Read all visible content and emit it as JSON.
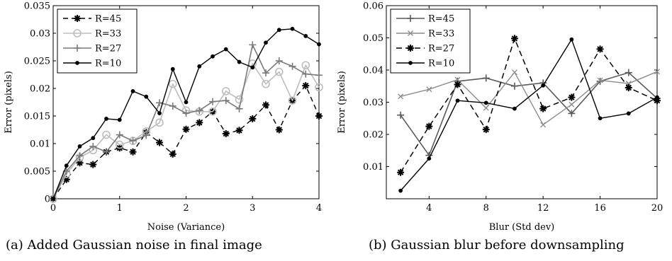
{
  "chart_data": [
    {
      "type": "line",
      "caption": "(a) Added Gaussian noise in final image",
      "xlabel": "Noise (Variance)",
      "ylabel": "Error (pixels)",
      "xlim": [
        0,
        4
      ],
      "ylim": [
        0,
        0.035
      ],
      "xticks": [
        0,
        1,
        2,
        3,
        4
      ],
      "yticks": [
        0,
        0.005,
        0.01,
        0.015,
        0.02,
        0.025,
        0.03,
        0.035
      ],
      "ytick_labels": [
        "0",
        "0.005",
        "0.01",
        "0.015",
        "0.02",
        "0.025",
        "0.03",
        "0.035"
      ],
      "legend_position": "top-left",
      "series": [
        {
          "name": "R=45",
          "color": "#000000",
          "dash": "7,5",
          "marker": "star",
          "width": 1.4,
          "x": [
            0,
            0.2,
            0.4,
            0.6,
            0.8,
            1.0,
            1.2,
            1.4,
            1.6,
            1.8,
            2.0,
            2.2,
            2.4,
            2.6,
            2.8,
            3.0,
            3.2,
            3.4,
            3.6,
            3.8,
            4.0
          ],
          "y": [
            0,
            0.0035,
            0.0065,
            0.0062,
            0.0085,
            0.0092,
            0.0085,
            0.012,
            0.0102,
            0.0081,
            0.0126,
            0.0138,
            0.0158,
            0.0118,
            0.0124,
            0.0145,
            0.017,
            0.0125,
            0.0178,
            0.0205,
            0.015
          ]
        },
        {
          "name": "R=33",
          "color": "#bdbdbd",
          "dash": "",
          "marker": "circle",
          "width": 1.6,
          "x": [
            0,
            0.2,
            0.4,
            0.6,
            0.8,
            1.0,
            1.2,
            1.4,
            1.6,
            1.8,
            2.0,
            2.2,
            2.4,
            2.6,
            2.8,
            3.0,
            3.2,
            3.4,
            3.6,
            3.8,
            4.0
          ],
          "y": [
            0,
            0.0045,
            0.0075,
            0.0088,
            0.0116,
            0.0098,
            0.0105,
            0.0122,
            0.0138,
            0.0208,
            0.016,
            0.0158,
            0.0158,
            0.0195,
            0.018,
            0.0245,
            0.0208,
            0.023,
            0.0178,
            0.0242,
            0.0202
          ]
        },
        {
          "name": "R=27",
          "color": "#7a7a7a",
          "dash": "",
          "marker": "plus",
          "width": 1.6,
          "x": [
            0,
            0.2,
            0.4,
            0.6,
            0.8,
            1.0,
            1.2,
            1.4,
            1.6,
            1.8,
            2.0,
            2.2,
            2.4,
            2.6,
            2.8,
            3.0,
            3.2,
            3.4,
            3.6,
            3.8,
            4.0
          ],
          "y": [
            0,
            0.005,
            0.0078,
            0.0095,
            0.0085,
            0.0116,
            0.0105,
            0.0115,
            0.0174,
            0.0168,
            0.0155,
            0.016,
            0.0176,
            0.0178,
            0.0163,
            0.0279,
            0.0228,
            0.025,
            0.024,
            0.0226,
            0.0224
          ]
        },
        {
          "name": "R=10",
          "color": "#000000",
          "dash": "",
          "marker": "dot",
          "width": 1.4,
          "x": [
            0,
            0.2,
            0.4,
            0.6,
            0.8,
            1.0,
            1.2,
            1.4,
            1.6,
            1.8,
            2.0,
            2.2,
            2.4,
            2.6,
            2.8,
            3.0,
            3.2,
            3.4,
            3.6,
            3.8,
            4.0
          ],
          "y": [
            0,
            0.006,
            0.0095,
            0.011,
            0.0145,
            0.0143,
            0.0195,
            0.0185,
            0.0155,
            0.0235,
            0.0175,
            0.024,
            0.0258,
            0.0271,
            0.0248,
            0.0238,
            0.0283,
            0.0306,
            0.0308,
            0.0295,
            0.028
          ]
        }
      ]
    },
    {
      "type": "line",
      "caption": "(b) Gaussian blur before downsampling",
      "xlabel": "Blur (Std dev)",
      "ylabel": "Error (pixels)",
      "xlim": [
        1,
        20
      ],
      "ylim": [
        0,
        0.06
      ],
      "xticks": [
        4,
        8,
        12,
        16,
        20
      ],
      "yticks": [
        0.01,
        0.02,
        0.03,
        0.04,
        0.05,
        0.06
      ],
      "ytick_labels": [
        "0.01",
        "0.02",
        "0.03",
        "0.04",
        "0.05",
        "0.06"
      ],
      "legend_position": "top-left",
      "series": [
        {
          "name": "R=45",
          "color": "#5a5a5a",
          "dash": "",
          "marker": "plus",
          "width": 1.6,
          "x": [
            2,
            4,
            6,
            8,
            10,
            12,
            14,
            16,
            18,
            20
          ],
          "y": [
            0.026,
            0.0135,
            0.0365,
            0.0375,
            0.035,
            0.036,
            0.0265,
            0.0365,
            0.0392,
            0.0312
          ]
        },
        {
          "name": "R=33",
          "color": "#8c8c8c",
          "dash": "",
          "marker": "x",
          "width": 1.4,
          "x": [
            2,
            4,
            6,
            8,
            10,
            12,
            14,
            16,
            18,
            20
          ],
          "y": [
            0.0318,
            0.034,
            0.037,
            0.0282,
            0.0393,
            0.023,
            0.0293,
            0.0368,
            0.0358,
            0.0395
          ]
        },
        {
          "name": "R=27",
          "color": "#000000",
          "dash": "8,5",
          "marker": "star",
          "width": 1.5,
          "x": [
            2,
            4,
            6,
            8,
            10,
            12,
            14,
            16,
            18,
            20
          ],
          "y": [
            0.0082,
            0.0225,
            0.0355,
            0.0215,
            0.0498,
            0.028,
            0.0315,
            0.0465,
            0.0345,
            0.0305
          ]
        },
        {
          "name": "R=10",
          "color": "#000000",
          "dash": "",
          "marker": "dot",
          "width": 1.4,
          "x": [
            2,
            4,
            6,
            8,
            10,
            12,
            14,
            16,
            18,
            20
          ],
          "y": [
            0.0025,
            0.0125,
            0.0305,
            0.0298,
            0.028,
            0.0352,
            0.0495,
            0.025,
            0.0265,
            0.0315
          ]
        }
      ]
    }
  ]
}
